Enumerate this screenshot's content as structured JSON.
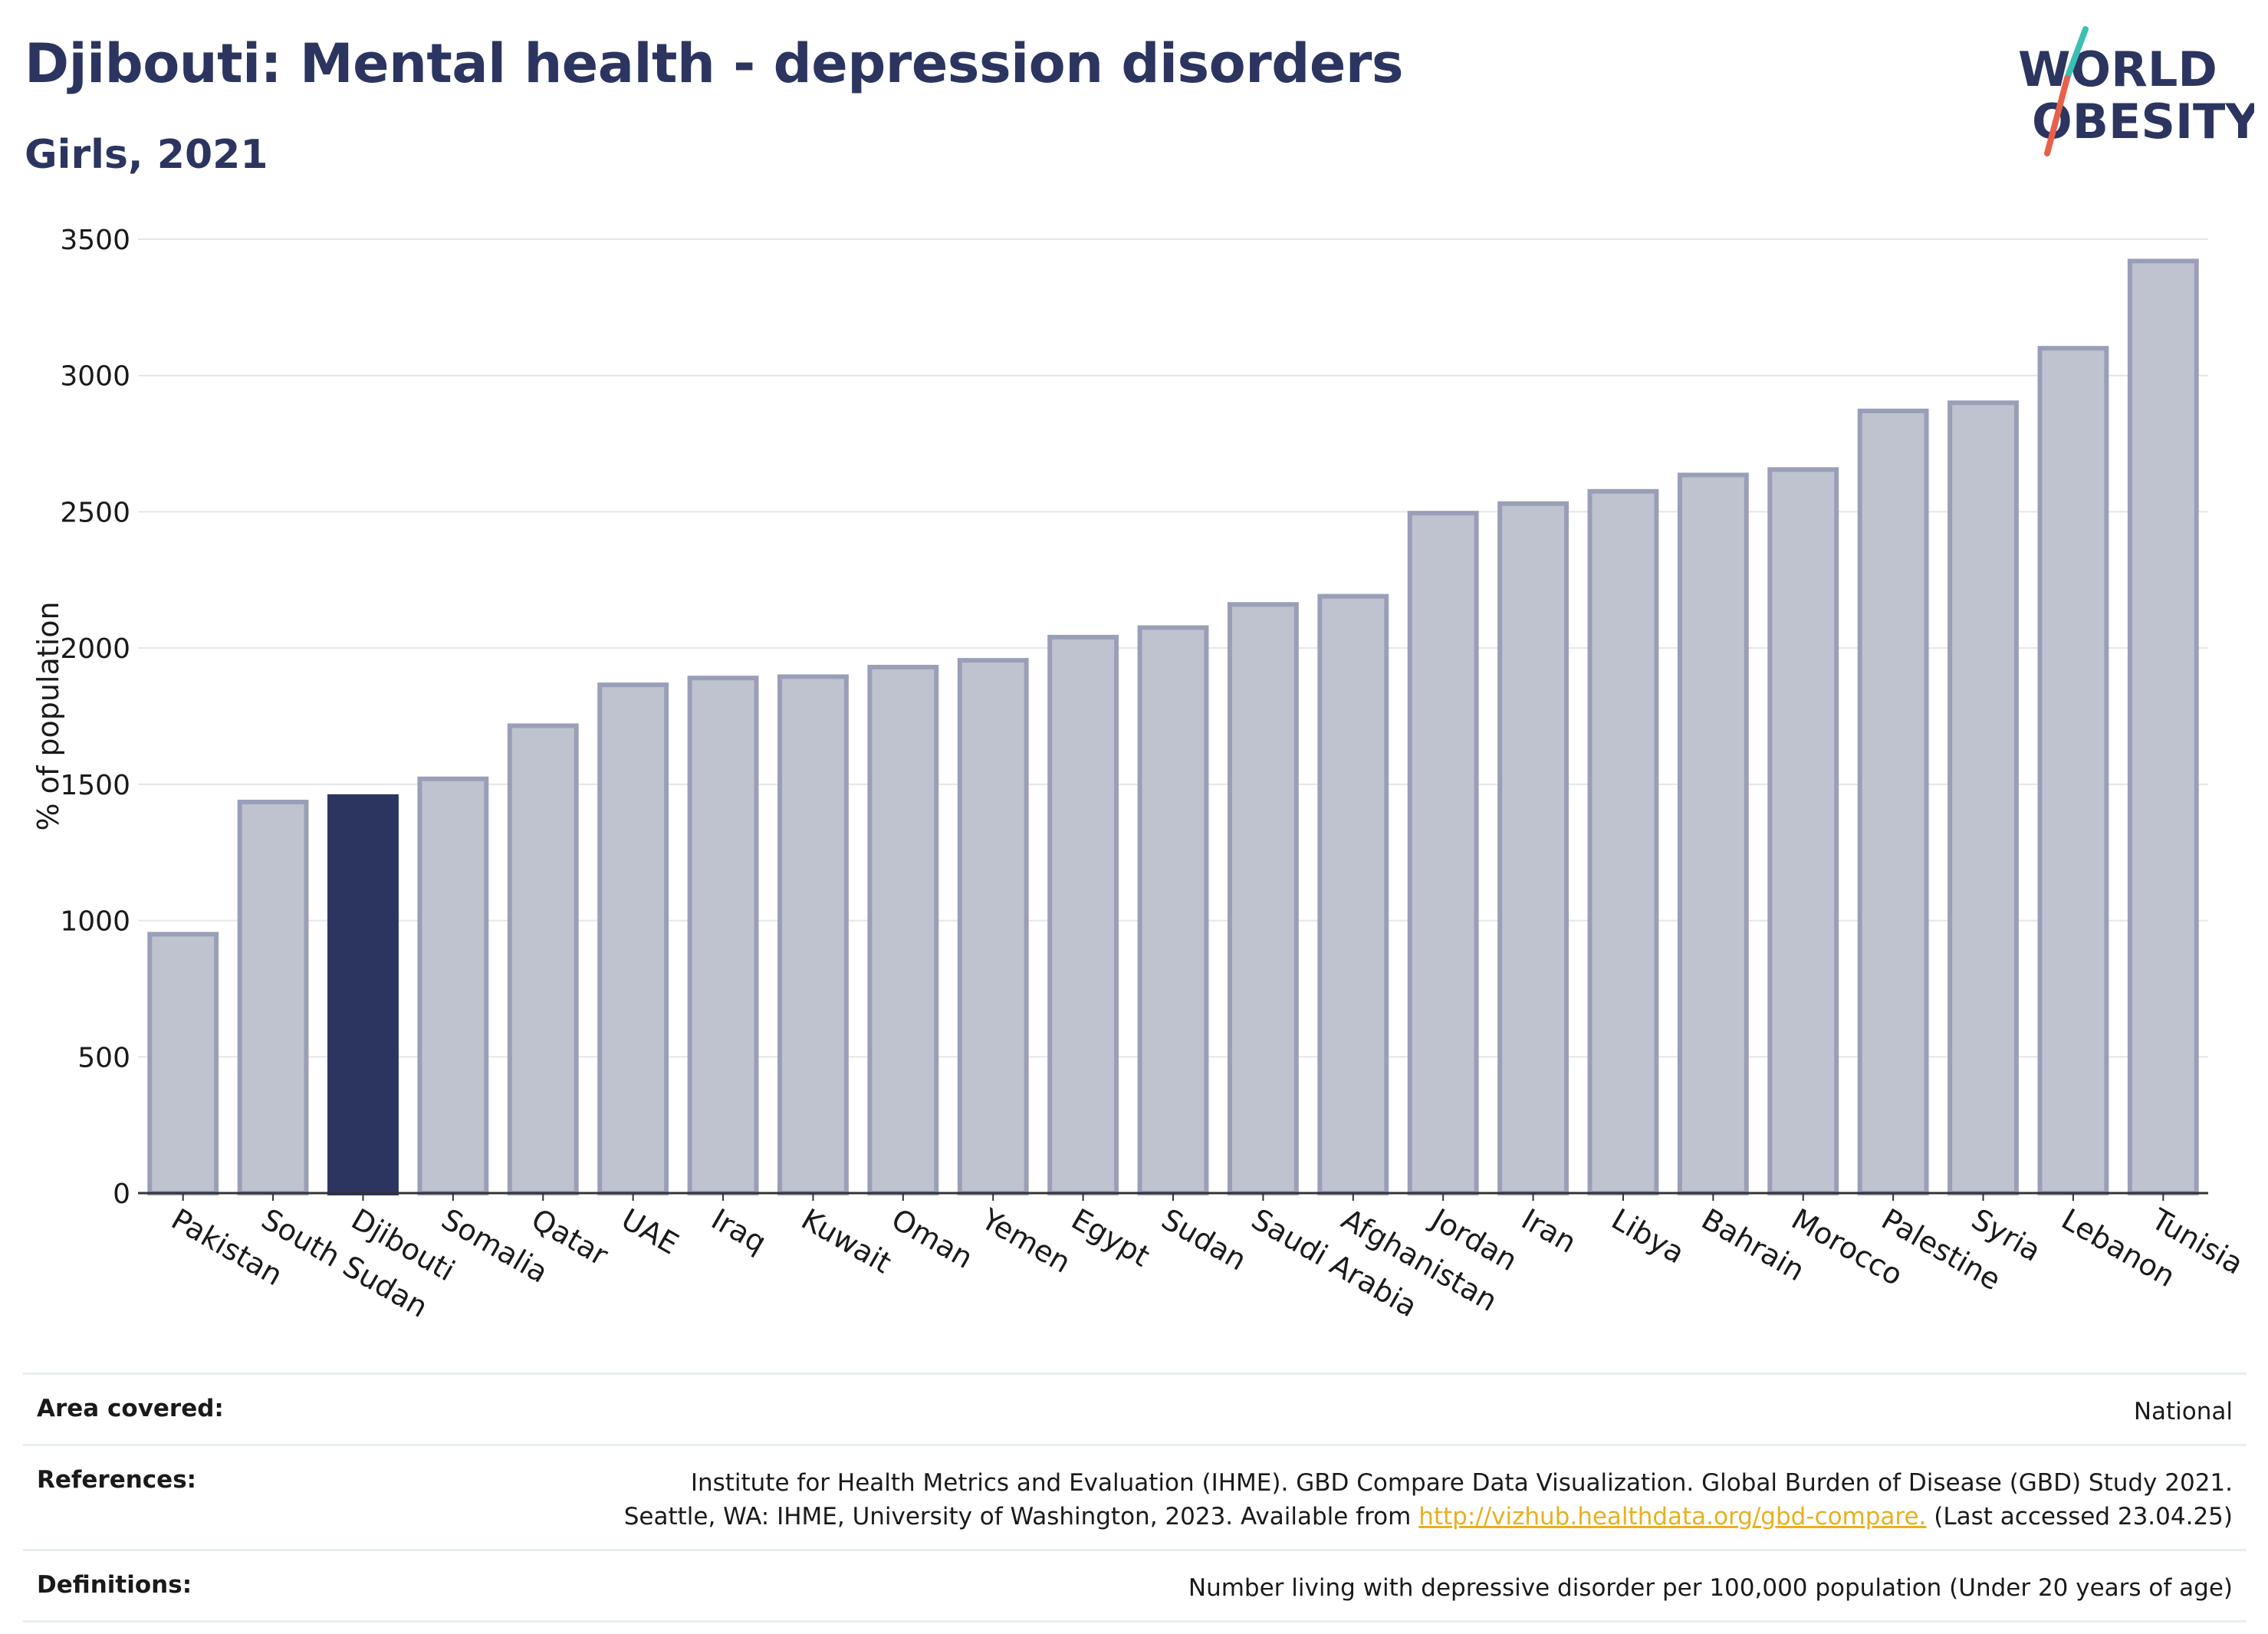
{
  "header": {
    "title": "Djibouti: Mental health - depression disorders",
    "subtitle": "Girls, 2021"
  },
  "logo": {
    "line1": "WORLD",
    "line2": "OBESITY"
  },
  "colors": {
    "highlight": "#2b3560",
    "bar_fill": "#bfc2cf",
    "bar_stroke": "#9a9fb8",
    "link": "#e8b020"
  },
  "chart_data": {
    "type": "bar",
    "ylabel": "% of population",
    "xlabel": "",
    "ylim": [
      0,
      3500
    ],
    "yticks": [
      0,
      500,
      1000,
      1500,
      2000,
      2500,
      3000,
      3500
    ],
    "grid": true,
    "highlight": "Djibouti",
    "categories": [
      "Pakistan",
      "South Sudan",
      "Djibouti",
      "Somalia",
      "Qatar",
      "UAE",
      "Iraq",
      "Kuwait",
      "Oman",
      "Yemen",
      "Egypt",
      "Sudan",
      "Saudi Arabia",
      "Afghanistan",
      "Jordan",
      "Iran",
      "Libya",
      "Bahrain",
      "Morocco",
      "Palestine",
      "Syria",
      "Lebanon",
      "Tunisia"
    ],
    "values": [
      950,
      1435,
      1455,
      1520,
      1715,
      1865,
      1890,
      1895,
      1930,
      1955,
      2040,
      2075,
      2160,
      2190,
      2495,
      2530,
      2575,
      2635,
      2655,
      2870,
      2900,
      3100,
      3420
    ]
  },
  "footer": {
    "area_label": "Area covered:",
    "area_value": "National",
    "references_label": "References:",
    "references_line1": "Institute for Health Metrics and Evaluation (IHME). GBD Compare Data Visualization. Global Burden of Disease (GBD) Study 2021.",
    "references_line2_pre": "Seattle, WA: IHME, University of Washington, 2023. Available from ",
    "references_link": "http://vizhub.healthdata.org/gbd-compare.",
    "references_line2_post": " (Last accessed 23.04.25)",
    "definitions_label": "Definitions:",
    "definitions_value": "Number living with depressive disorder per 100,000 population (Under 20 years of age)"
  }
}
